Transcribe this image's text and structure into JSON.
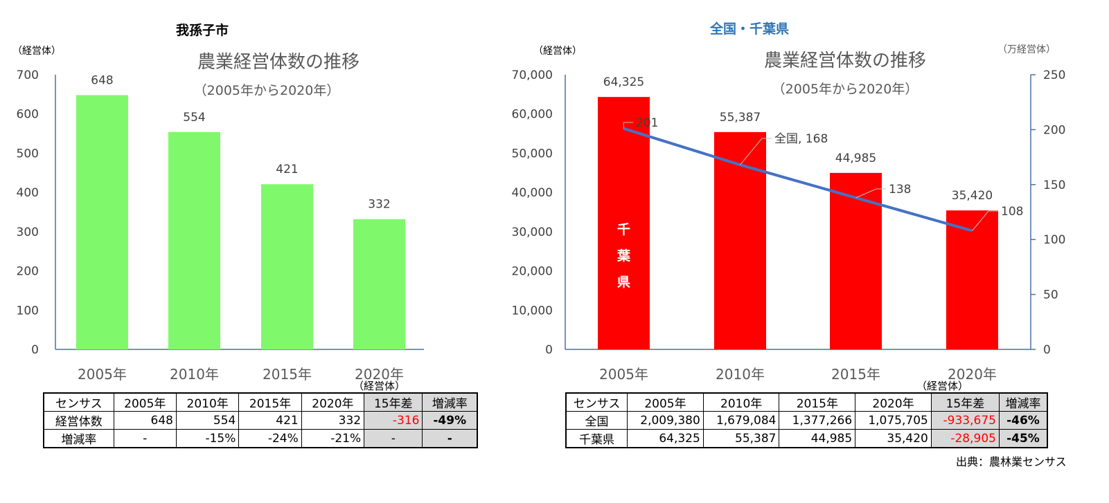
{
  "chart_data": [
    {
      "type": "bar",
      "heading": "我孫子市",
      "title": "農業経営体数の推移",
      "subtitle": "（2005年から2020年）",
      "ylabel": "（経営体）",
      "categories": [
        "2005年",
        "2010年",
        "2015年",
        "2020年"
      ],
      "values": [
        648,
        554,
        421,
        332
      ],
      "ylim": [
        0,
        700
      ],
      "yticks": [
        0,
        100,
        200,
        300,
        400,
        500,
        600,
        700
      ],
      "color": "#80f86c",
      "grid": false,
      "legend": "none"
    },
    {
      "type": "bar+line",
      "heading": "全国・千葉県",
      "heading_color": "#2e75b6",
      "title": "農業経営体数の推移",
      "subtitle": "（2005年から2020年）",
      "ylabel": "（経営体）",
      "y2label": "（万経営体）",
      "categories": [
        "2005年",
        "2010年",
        "2015年",
        "2020年"
      ],
      "series": [
        {
          "name": "千葉県",
          "type": "bar",
          "axis": "left",
          "values": [
            64325,
            55387,
            44985,
            35420
          ],
          "labels": [
            "64,325",
            "55,387",
            "44,985",
            "35,420"
          ],
          "color": "#ff0000"
        },
        {
          "name": "全国",
          "type": "line",
          "axis": "right",
          "values": [
            201,
            168,
            138,
            108
          ],
          "labels": [
            "201",
            "全国, 168",
            "138",
            "108"
          ],
          "color": "#4472c4"
        }
      ],
      "ylim": [
        0,
        70000
      ],
      "yticks": [
        "0",
        "10,000",
        "20,000",
        "30,000",
        "40,000",
        "50,000",
        "60,000",
        "70,000"
      ],
      "y2lim": [
        0,
        250
      ],
      "y2ticks": [
        0,
        50,
        100,
        150,
        200,
        250
      ],
      "grid": false,
      "legend": "none"
    }
  ],
  "tables": [
    {
      "unit": "（経営体）",
      "header": [
        "センサス",
        "2005年",
        "2010年",
        "2015年",
        "2020年",
        "15年差",
        "増減率"
      ],
      "rows": [
        [
          "経営体数",
          "648",
          "554",
          "421",
          "332",
          "-316",
          "-49%"
        ],
        [
          "増減率",
          "-",
          "-15%",
          "-24%",
          "-21%",
          "-",
          "-"
        ]
      ]
    },
    {
      "unit": "（経営体）",
      "header": [
        "センサス",
        "2005年",
        "2010年",
        "2015年",
        "2020年",
        "15年差",
        "増減率"
      ],
      "rows": [
        [
          "全国",
          "2,009,380",
          "1,679,084",
          "1,377,266",
          "1,075,705",
          "-933,675",
          "-46%"
        ],
        [
          "千葉県",
          "64,325",
          "55,387",
          "44,985",
          "35,420",
          "-28,905",
          "-45%"
        ]
      ]
    }
  ],
  "source": "出典：農林業センサス"
}
